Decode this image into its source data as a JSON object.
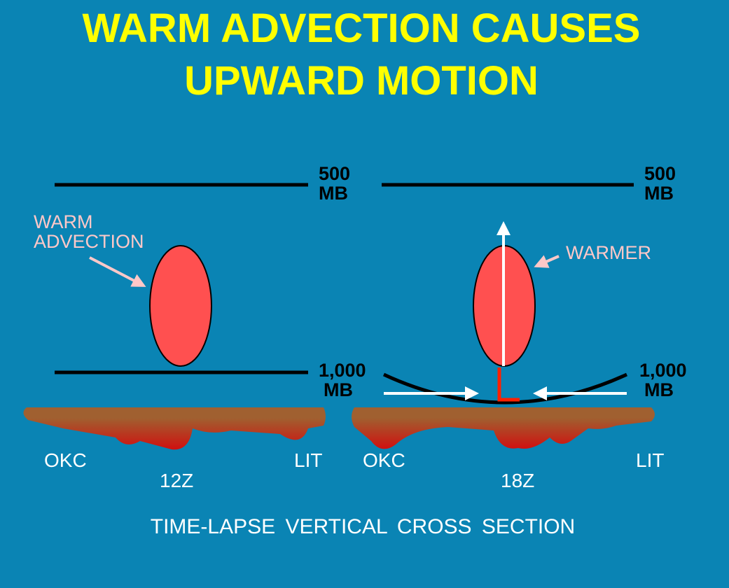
{
  "title": [
    "WARM ADVECTION CAUSES",
    "UPWARD MOTION"
  ],
  "panels": [
    {
      "upper_level": [
        "500",
        "MB"
      ],
      "lower_level": [
        "1,000",
        "MB"
      ],
      "annotation": [
        "WARM",
        "ADVECTION"
      ],
      "west": "OKC",
      "east": "LIT",
      "time": "12Z"
    },
    {
      "upper_level": [
        "500",
        "MB"
      ],
      "lower_level": [
        "1,000",
        "MB"
      ],
      "annotation": [
        "WARMER"
      ],
      "west": "OKC",
      "east": "LIT",
      "time": "18Z"
    }
  ],
  "caption": "TIME-LAPSE VERTICAL CROSS SECTION"
}
